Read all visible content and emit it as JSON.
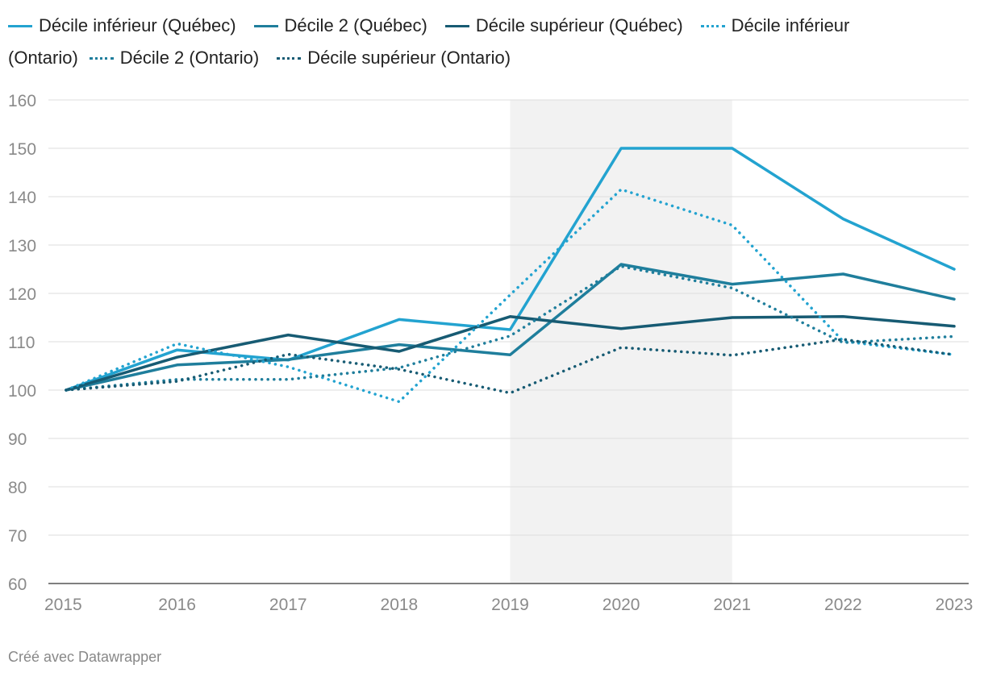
{
  "chart_data": {
    "type": "line",
    "title": "",
    "xlabel": "",
    "ylabel": "",
    "x": [
      2015,
      2016,
      2017,
      2018,
      2019,
      2020,
      2021,
      2022,
      2023
    ],
    "ylim": [
      60,
      160
    ],
    "yticks": [
      60,
      70,
      80,
      90,
      100,
      110,
      120,
      130,
      140,
      150,
      160
    ],
    "xtick_labels": [
      "2015",
      "2016",
      "2017",
      "2018",
      "2019",
      "2020",
      "2021",
      "2022",
      "2023"
    ],
    "ytick_labels": [
      "60",
      "70",
      "80",
      "90",
      "100",
      "110",
      "120",
      "130",
      "140",
      "150",
      "160"
    ],
    "highlight_range": [
      2019,
      2021
    ],
    "grid": true,
    "legend_position": "top",
    "series": [
      {
        "name": "Décile inférieur (Québec)",
        "color": "#23a3d0",
        "style": "solid",
        "values": [
          100,
          108.3,
          106.2,
          114.6,
          112.5,
          150,
          150,
          135.4,
          125
        ]
      },
      {
        "name": "Décile 2 (Québec)",
        "color": "#1f7e9c",
        "style": "solid",
        "values": [
          100,
          105.2,
          106.3,
          109.4,
          107.3,
          126,
          121.9,
          124,
          118.8
        ]
      },
      {
        "name": "Décile supérieur (Québec)",
        "color": "#175b73",
        "style": "solid",
        "values": [
          100,
          106.8,
          111.4,
          108,
          115.2,
          112.7,
          115,
          115.2,
          113.2
        ]
      },
      {
        "name": "Décile inférieur (Ontario)",
        "color": "#23a3d0",
        "style": "dotted",
        "values": [
          100,
          109.6,
          104.8,
          97.6,
          119.7,
          141.5,
          134.1,
          110.1,
          107.3
        ]
      },
      {
        "name": "Décile 2 (Ontario)",
        "color": "#1f7e9c",
        "style": "dotted",
        "values": [
          100,
          102.2,
          102.2,
          104.6,
          111.2,
          125.6,
          121.1,
          109.8,
          111.1
        ]
      },
      {
        "name": "Décile supérieur (Ontario)",
        "color": "#175b73",
        "style": "dotted",
        "values": [
          100,
          101.8,
          107.4,
          104.3,
          99.4,
          108.8,
          107.2,
          110.5,
          107.3
        ]
      }
    ]
  },
  "legend": {
    "items": [
      {
        "label": "Décile inférieur (Québec)",
        "color": "#23a3d0",
        "style": "solid"
      },
      {
        "label": "Décile 2 (Québec)",
        "color": "#1f7e9c",
        "style": "solid"
      },
      {
        "label": "Décile supérieur (Québec)",
        "color": "#175b73",
        "style": "solid"
      },
      {
        "label": "Décile inférieur",
        "color": "#23a3d0",
        "style": "dotted"
      },
      {
        "label": "(Ontario)"
      },
      {
        "label": "Décile 2 (Ontario)",
        "color": "#1f7e9c",
        "style": "dotted"
      },
      {
        "label": "Décile supérieur (Ontario)",
        "color": "#175b73",
        "style": "dotted"
      }
    ]
  },
  "footer": {
    "credit": "Créé avec Datawrapper"
  },
  "colors": {
    "grid": "#dddddd",
    "axis_text": "#8a8a8a",
    "highlight": "#f2f2f2",
    "baseline": "#333333"
  }
}
